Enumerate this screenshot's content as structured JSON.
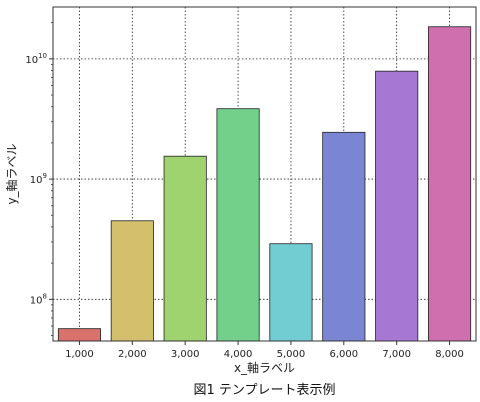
{
  "chart_data": {
    "type": "bar",
    "categories": [
      "1,000",
      "2,000",
      "3,000",
      "4,000",
      "5,000",
      "6,000",
      "7,000",
      "8,000"
    ],
    "values": [
      57000000,
      450000000,
      1550000000,
      3850000000,
      290000000,
      2450000000,
      7900000000,
      18500000000
    ],
    "colors": [
      "#d9726c",
      "#d4bf6d",
      "#9fd36f",
      "#72d08a",
      "#72cdd3",
      "#7a86d3",
      "#a777d4",
      "#d06fae"
    ],
    "xlabel": "x_軸ラベル",
    "ylabel": "y_軸ラベル",
    "yscale": "log",
    "ylim": [
      45000000,
      27000000000
    ],
    "yticks": [
      100000000,
      1000000000,
      10000000000
    ],
    "ytick_labels": [
      {
        "base": "10",
        "exp": "8"
      },
      {
        "base": "10",
        "exp": "9"
      },
      {
        "base": "10",
        "exp": "10"
      }
    ],
    "grid": true,
    "caption": "図1 テンプレート表示例"
  }
}
